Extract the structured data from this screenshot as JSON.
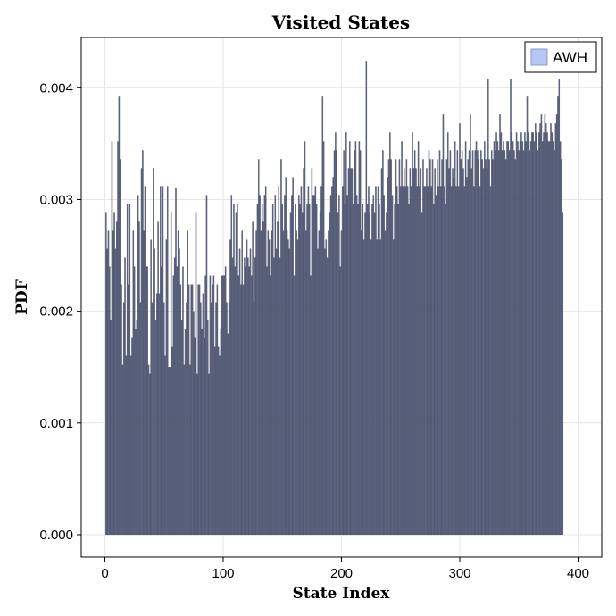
{
  "chart_data": {
    "type": "bar",
    "title": "Visited States",
    "xlabel": "State Index",
    "ylabel": "PDF",
    "xlim": [
      -20,
      420
    ],
    "ylim": [
      -0.0002,
      0.00445
    ],
    "x_ticks": [
      0,
      100,
      200,
      300,
      400
    ],
    "x_tick_labels": [
      "0",
      "100",
      "200",
      "300",
      "400"
    ],
    "y_ticks": [
      0.0,
      0.001,
      0.002,
      0.003,
      0.004
    ],
    "y_tick_labels": [
      "0.000",
      "0.001",
      "0.002",
      "0.003",
      "0.004"
    ],
    "grid": true,
    "legend_position": "top-right",
    "bar_width": 1,
    "series": [
      {
        "name": "AWH",
        "color": "#b8c6f5",
        "opacity": 0.55,
        "x_start": 1,
        "x_step": 1,
        "values": [
          0.00288,
          0.00256,
          0.00272,
          0.0024,
          0.00192,
          0.00352,
          0.00272,
          0.00288,
          0.00256,
          0.0028,
          0.00352,
          0.00392,
          0.00336,
          0.00224,
          0.00152,
          0.00208,
          0.00248,
          0.0016,
          0.00296,
          0.00224,
          0.00296,
          0.0016,
          0.00176,
          0.00272,
          0.0024,
          0.00184,
          0.00192,
          0.00304,
          0.0028,
          0.00208,
          0.00328,
          0.00344,
          0.00272,
          0.00312,
          0.0024,
          0.0024,
          0.00152,
          0.00144,
          0.00264,
          0.00208,
          0.00328,
          0.00256,
          0.00192,
          0.00216,
          0.0028,
          0.00216,
          0.00312,
          0.0024,
          0.00312,
          0.00208,
          0.0016,
          0.00264,
          0.00312,
          0.0015,
          0.0015,
          0.00288,
          0.00168,
          0.00232,
          0.00248,
          0.0031,
          0.0024,
          0.00272,
          0.00256,
          0.00224,
          0.00192,
          0.0024,
          0.00152,
          0.00184,
          0.00208,
          0.00272,
          0.00224,
          0.00152,
          0.00224,
          0.00224,
          0.002,
          0.00176,
          0.00288,
          0.00144,
          0.00224,
          0.00224,
          0.00208,
          0.00184,
          0.00216,
          0.00176,
          0.00232,
          0.00304,
          0.00192,
          0.00144,
          0.00232,
          0.00208,
          0.00224,
          0.00232,
          0.00168,
          0.00208,
          0.00224,
          0.00168,
          0.0016,
          0.00184,
          0.00232,
          0.00232,
          0.00232,
          0.0024,
          0.00208,
          0.0018,
          0.00208,
          0.00264,
          0.00304,
          0.00248,
          0.00296,
          0.0024,
          0.00288,
          0.00296,
          0.00232,
          0.00256,
          0.00224,
          0.00272,
          0.00224,
          0.00248,
          0.0024,
          0.00264,
          0.00248,
          0.0024,
          0.00256,
          0.00232,
          0.0028,
          0.00208,
          0.00248,
          0.00272,
          0.00296,
          0.00336,
          0.00304,
          0.00272,
          0.00296,
          0.0028,
          0.00304,
          0.00312,
          0.0024,
          0.00272,
          0.00264,
          0.00232,
          0.00272,
          0.00296,
          0.00248,
          0.00304,
          0.00256,
          0.0028,
          0.00312,
          0.00248,
          0.00336,
          0.00296,
          0.00272,
          0.00304,
          0.0032,
          0.00272,
          0.00264,
          0.00256,
          0.00288,
          0.00304,
          0.0032,
          0.00232,
          0.00296,
          0.00272,
          0.00264,
          0.00304,
          0.00296,
          0.00312,
          0.00288,
          0.00328,
          0.00352,
          0.00272,
          0.00296,
          0.00312,
          0.00296,
          0.00232,
          0.00328,
          0.00304,
          0.00304,
          0.00312,
          0.00296,
          0.00256,
          0.00272,
          0.00288,
          0.00312,
          0.00392,
          0.00352,
          0.00256,
          0.00264,
          0.00248,
          0.00272,
          0.00288,
          0.00304,
          0.00312,
          0.0032,
          0.00344,
          0.0036,
          0.00344,
          0.00288,
          0.00304,
          0.0024,
          0.00272,
          0.00312,
          0.00344,
          0.00296,
          0.0036,
          0.00304,
          0.00328,
          0.00352,
          0.00328,
          0.00328,
          0.00296,
          0.00344,
          0.00352,
          0.00304,
          0.00296,
          0.00352,
          0.00344,
          0.00272,
          0.00296,
          0.00264,
          0.00288,
          0.00424,
          0.00296,
          0.00312,
          0.00288,
          0.00264,
          0.00296,
          0.00304,
          0.00288,
          0.00312,
          0.00264,
          0.00312,
          0.00296,
          0.00264,
          0.00328,
          0.00344,
          0.00304,
          0.00272,
          0.00288,
          0.0032,
          0.00336,
          0.0036,
          0.00336,
          0.00304,
          0.00264,
          0.00296,
          0.00336,
          0.00312,
          0.00296,
          0.00336,
          0.00312,
          0.00352,
          0.00312,
          0.00328,
          0.00312,
          0.00336,
          0.00312,
          0.00296,
          0.00328,
          0.00312,
          0.0036,
          0.00328,
          0.00344,
          0.00328,
          0.00312,
          0.00352,
          0.00312,
          0.00328,
          0.00288,
          0.00336,
          0.00312,
          0.00312,
          0.00328,
          0.00312,
          0.00344,
          0.00336,
          0.00312,
          0.00336,
          0.00296,
          0.00328,
          0.00304,
          0.00336,
          0.00312,
          0.00344,
          0.00312,
          0.00336,
          0.00376,
          0.00312,
          0.00296,
          0.00336,
          0.0036,
          0.00328,
          0.00344,
          0.00312,
          0.00328,
          0.0032,
          0.00352,
          0.00312,
          0.00344,
          0.00312,
          0.00368,
          0.00336,
          0.00344,
          0.00328,
          0.00312,
          0.00352,
          0.0032,
          0.00336,
          0.00344,
          0.00376,
          0.00328,
          0.00344,
          0.00312,
          0.00344,
          0.00352,
          0.00344,
          0.00336,
          0.00312,
          0.00344,
          0.00336,
          0.00328,
          0.00352,
          0.00336,
          0.00328,
          0.00408,
          0.00336,
          0.00312,
          0.00344,
          0.00336,
          0.00352,
          0.00344,
          0.0036,
          0.00352,
          0.00344,
          0.00376,
          0.0036,
          0.00344,
          0.00352,
          0.00344,
          0.00336,
          0.00352,
          0.00352,
          0.00344,
          0.00408,
          0.0036,
          0.00352,
          0.00344,
          0.00336,
          0.0036,
          0.00352,
          0.00344,
          0.00352,
          0.0036,
          0.00352,
          0.00344,
          0.0036,
          0.00352,
          0.00392,
          0.0036,
          0.00344,
          0.00352,
          0.0036,
          0.0036,
          0.00352,
          0.00368,
          0.0036,
          0.00344,
          0.0036,
          0.00368,
          0.00376,
          0.00352,
          0.0036,
          0.00376,
          0.00368,
          0.0036,
          0.00352,
          0.00352,
          0.00368,
          0.0036,
          0.00352,
          0.00344,
          0.00368,
          0.00376,
          0.00392,
          0.00408,
          0.00352,
          0.00336,
          0.00288
        ]
      }
    ]
  }
}
